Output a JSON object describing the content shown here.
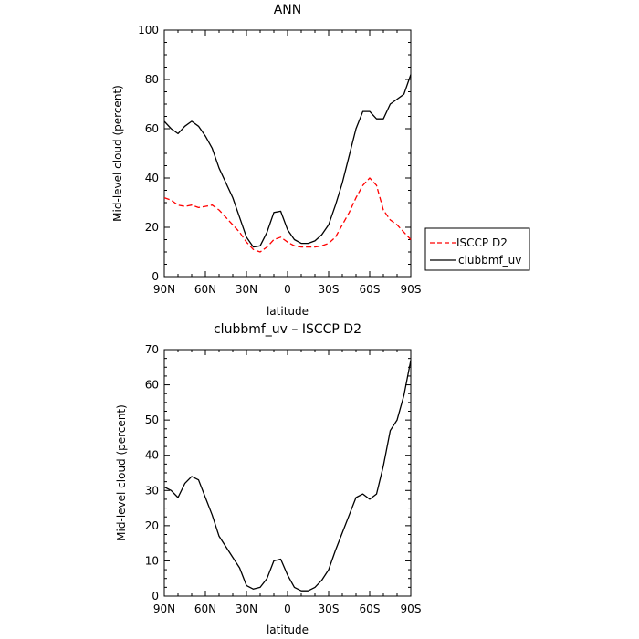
{
  "chart_data": [
    {
      "type": "line",
      "title": "ANN",
      "xlabel": "latitude",
      "ylabel": "Mid-level cloud (percent)",
      "x_ticks": [
        "90N",
        "60N",
        "30N",
        "0",
        "30S",
        "60S",
        "90S"
      ],
      "x_tick_values": [
        90,
        60,
        30,
        0,
        -30,
        -60,
        -90
      ],
      "xlim": [
        90,
        -90
      ],
      "ylim": [
        0,
        100
      ],
      "y_ticks": [
        0,
        20,
        40,
        60,
        80,
        100
      ],
      "legend": {
        "position": "right"
      },
      "series": [
        {
          "name": "ISCCP D2",
          "color": "#ff0000",
          "dash": "dashed",
          "x": [
            90,
            85,
            80,
            75,
            70,
            65,
            60,
            55,
            50,
            45,
            40,
            35,
            30,
            25,
            20,
            15,
            10,
            5,
            0,
            -5,
            -10,
            -15,
            -20,
            -25,
            -30,
            -35,
            -40,
            -45,
            -50,
            -55,
            -60,
            -65,
            -70,
            -75,
            -80,
            -85,
            -90
          ],
          "y": [
            32,
            31,
            29,
            28.5,
            29,
            28,
            28.5,
            29,
            27,
            24,
            21,
            18,
            14,
            11,
            10,
            12,
            15,
            16,
            14,
            12.5,
            12,
            12,
            12,
            12.5,
            13.5,
            16,
            21,
            26,
            32,
            37,
            40,
            37,
            27,
            23,
            21,
            18,
            15
          ]
        },
        {
          "name": "clubbmf_uv",
          "color": "#000000",
          "dash": "solid",
          "x": [
            90,
            85,
            80,
            75,
            70,
            65,
            60,
            55,
            50,
            45,
            40,
            35,
            30,
            25,
            20,
            15,
            10,
            5,
            0,
            -5,
            -10,
            -15,
            -20,
            -25,
            -30,
            -35,
            -40,
            -45,
            -50,
            -55,
            -60,
            -65,
            -70,
            -75,
            -80,
            -85,
            -90
          ],
          "y": [
            63,
            60,
            58,
            61,
            63,
            61,
            57,
            52,
            44,
            38,
            32,
            24,
            16,
            12,
            12.5,
            18,
            26,
            26.5,
            19,
            15,
            13.5,
            13.5,
            14.5,
            17,
            21,
            29,
            38,
            49,
            60,
            67,
            67,
            64,
            64,
            70,
            72,
            74,
            82
          ]
        }
      ]
    },
    {
      "type": "line",
      "title": "clubbmf_uv – ISCCP D2",
      "xlabel": "latitude",
      "ylabel": "Mid-level cloud (percent)",
      "x_ticks": [
        "90N",
        "60N",
        "30N",
        "0",
        "30S",
        "60S",
        "90S"
      ],
      "x_tick_values": [
        90,
        60,
        30,
        0,
        -30,
        -60,
        -90
      ],
      "xlim": [
        90,
        -90
      ],
      "ylim": [
        0,
        70
      ],
      "y_ticks": [
        0,
        10,
        20,
        30,
        40,
        50,
        60,
        70
      ],
      "series": [
        {
          "color": "#000000",
          "dash": "solid",
          "x": [
            90,
            85,
            80,
            75,
            70,
            65,
            60,
            55,
            50,
            45,
            40,
            35,
            30,
            25,
            20,
            15,
            10,
            5,
            0,
            -5,
            -10,
            -15,
            -20,
            -25,
            -30,
            -35,
            -40,
            -45,
            -50,
            -55,
            -60,
            -65,
            -70,
            -75,
            -80,
            -85,
            -88,
            -90
          ],
          "y": [
            31,
            30,
            28,
            32,
            34,
            33,
            28,
            23,
            17,
            14,
            11,
            8,
            3,
            2,
            2.5,
            5,
            10,
            10.5,
            6,
            2.5,
            1.5,
            1.5,
            2.5,
            4.5,
            7.5,
            13,
            18,
            23,
            28,
            29,
            27.5,
            29,
            37,
            47,
            50,
            57,
            63,
            67
          ]
        }
      ]
    }
  ]
}
